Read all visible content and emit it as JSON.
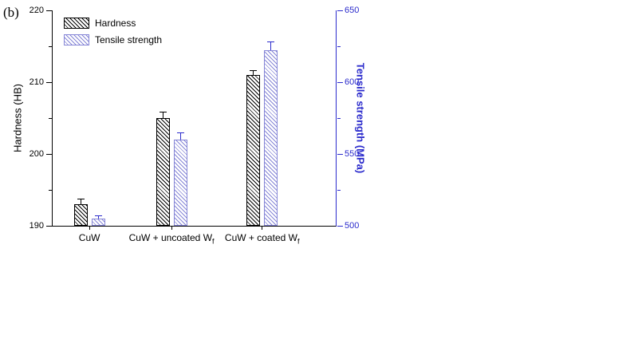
{
  "figure_label": "(b)",
  "colors": {
    "axis_blue": "#2b2bcc",
    "bar_blue_hatch": "#8585d6",
    "bar_black": "#000000",
    "background": "#ffffff"
  },
  "chart_data": {
    "type": "bar",
    "title": "",
    "categories": [
      {
        "text": "CuW",
        "sub": ""
      },
      {
        "text": "CuW + uncoated W",
        "sub": "f"
      },
      {
        "text": "CuW + coated W",
        "sub": "f"
      }
    ],
    "series": [
      {
        "name": "Hardness",
        "axis": "left",
        "values": [
          193,
          205,
          211
        ],
        "errors": [
          0.7,
          0.8,
          0.6
        ]
      },
      {
        "name": "Tensile strength",
        "axis": "right",
        "values": [
          505,
          560,
          622
        ],
        "errors": [
          2,
          5,
          6
        ]
      }
    ],
    "left_axis": {
      "label": "Hardness (HB)",
      "min": 190,
      "max": 220,
      "major_ticks": [
        190,
        200,
        210,
        220
      ],
      "minor_step": 5
    },
    "right_axis": {
      "label": "Tensile strength (MPa)",
      "min": 500,
      "max": 650,
      "major_ticks": [
        500,
        550,
        600,
        650
      ],
      "minor_step": 25
    },
    "legend": {
      "position": "top-left",
      "entries": [
        "Hardness",
        "Tensile strength"
      ]
    },
    "grid": false
  }
}
